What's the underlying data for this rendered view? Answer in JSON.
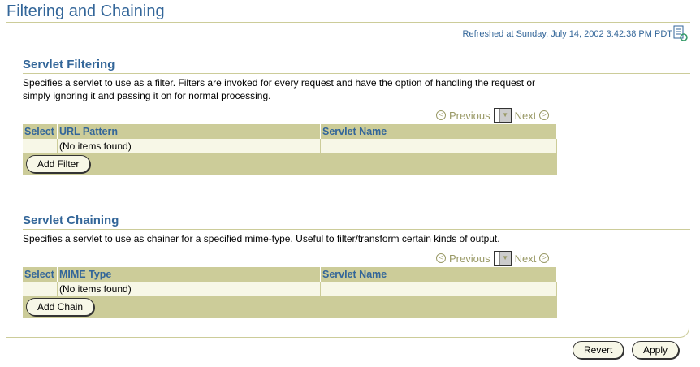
{
  "title": "Filtering and Chaining",
  "refreshed": "Refreshed at Sunday, July 14, 2002 3:42:38 PM PDT",
  "filtering": {
    "heading": "Servlet Filtering",
    "description": "Specifies a servlet to use as a filter. Filters are invoked for every request and have the option of handling the request or simply ignoring it and passing it on for normal processing.",
    "previous": "Previous",
    "next": "Next",
    "columns": [
      "Select",
      "URL Pattern",
      "Servlet Name"
    ],
    "empty": "(No items found)",
    "button": "Add Filter"
  },
  "chaining": {
    "heading": "Servlet Chaining",
    "description": "Specifies a servlet to use as chainer for a specified mime-type. Useful to filter/transform certain kinds of output.",
    "previous": "Previous",
    "next": "Next",
    "columns": [
      "Select",
      "MIME Type",
      "Servlet Name"
    ],
    "empty": "(No items found)",
    "button": "Add Chain"
  },
  "footer": {
    "revert": "Revert",
    "apply": "Apply"
  }
}
